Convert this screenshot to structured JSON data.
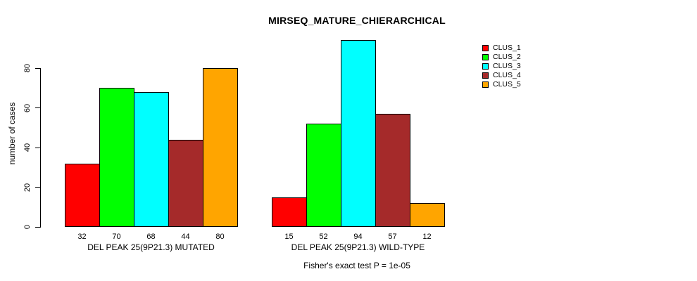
{
  "chart_data": {
    "type": "bar",
    "title": "MIRSEQ_MATURE_CHIERARCHICAL",
    "ylabel": "number of cases",
    "xlabel": "",
    "ylim": [
      0,
      95
    ],
    "yticks": [
      0,
      20,
      40,
      60,
      80
    ],
    "grid": false,
    "legend_position": "right",
    "series": [
      {
        "name": "CLUS_1",
        "color": "#ff0000"
      },
      {
        "name": "CLUS_2",
        "color": "#00ff00"
      },
      {
        "name": "CLUS_3",
        "color": "#00ffff"
      },
      {
        "name": "CLUS_4",
        "color": "#a52a2a"
      },
      {
        "name": "CLUS_5",
        "color": "#ffa500"
      }
    ],
    "groups": [
      {
        "label": "DEL PEAK 25(9P21.3) MUTATED",
        "values": [
          32,
          70,
          68,
          44,
          80
        ]
      },
      {
        "label": "DEL PEAK 25(9P21.3) WILD-TYPE",
        "values": [
          15,
          52,
          94,
          57,
          12
        ]
      }
    ],
    "bar_value_labels_shown": true,
    "annotation": "Fisher's exact test P = 1e-05",
    "colors": {
      "background": "#ffffff",
      "bar_border": "#000000",
      "text": "#000000"
    }
  }
}
